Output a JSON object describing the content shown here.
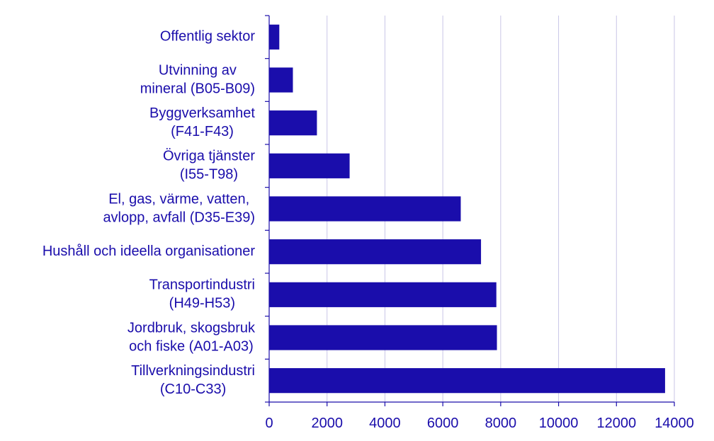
{
  "chart_data": {
    "type": "bar",
    "orientation": "horizontal",
    "categories": [
      [
        "Offentlig sektor"
      ],
      [
        "Utvinning av",
        "mineral (B05-B09)"
      ],
      [
        "Byggverksamhet",
        "(F41-F43)"
      ],
      [
        "Övriga tjänster",
        "(I55-T98)"
      ],
      [
        "El, gas, värme, vatten,",
        "avlopp, avfall (D35-E39)"
      ],
      [
        "Hushåll och ideella organisationer"
      ],
      [
        "Transportindustri",
        "(H49-H53)"
      ],
      [
        "Jordbruk, skogsbruk",
        "och fiske (A01-A03)"
      ],
      [
        "Tillverkningsindustri",
        "(C10-C33)"
      ]
    ],
    "values": [
      350,
      820,
      1650,
      2780,
      6620,
      7320,
      7850,
      7870,
      13680
    ],
    "xlim": [
      0,
      14000
    ],
    "xticks": [
      0,
      2000,
      4000,
      6000,
      8000,
      10000,
      12000,
      14000
    ],
    "grid": true,
    "colors": {
      "bar": "#1a0dab",
      "text": "#1a0dab",
      "grid": "#c9c6e6"
    }
  }
}
